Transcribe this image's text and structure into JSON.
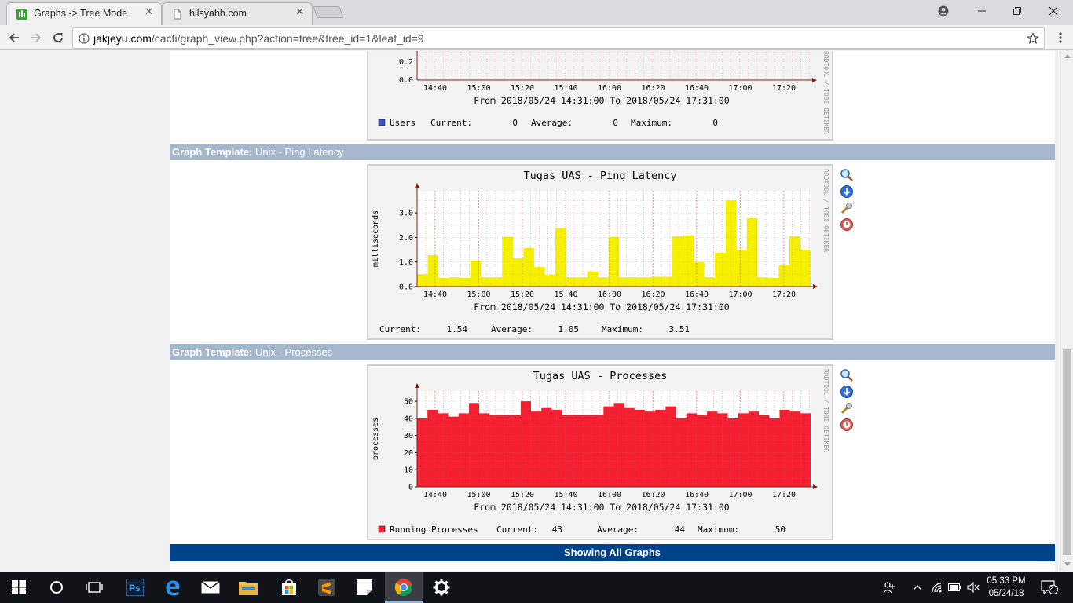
{
  "browser": {
    "tabs": [
      {
        "title": "Graphs -> Tree Mode",
        "active": true
      },
      {
        "title": "hilsyahh.com",
        "active": false
      }
    ],
    "url": {
      "host": "jakjeyu.com",
      "path": "/cacti/graph_view.php?action=tree&tree_id=1&leaf_id=9"
    }
  },
  "page": {
    "graph_users": {
      "y_ticks": [
        "0.2",
        "0.0"
      ],
      "x_ticks": [
        "14:40",
        "15:00",
        "15:20",
        "15:40",
        "16:00",
        "16:20",
        "16:40",
        "17:00",
        "17:20"
      ],
      "range_text": "From 2018/05/24 14:31:00 To 2018/05/24 17:31:00",
      "legend": {
        "series": "Users",
        "current_label": "Current:",
        "current": "0",
        "average_label": "Average:",
        "average": "0",
        "maximum_label": "Maximum:",
        "maximum": "0",
        "color": "#3a57c5"
      }
    },
    "templates": [
      {
        "label": "Graph Template:",
        "name": "Unix - Ping Latency"
      },
      {
        "label": "Graph Template:",
        "name": "Unix - Processes"
      }
    ],
    "watermark": "RRDTOOL / TOBI OETIKER",
    "showing_all": "Showing All Graphs"
  },
  "chart_data": [
    {
      "type": "area",
      "title": "Tugas UAS - Ping Latency",
      "ylabel": "milliseconds",
      "xlabel": "",
      "ylim": [
        0,
        3.9
      ],
      "y_ticks": [
        "0.0",
        "1.0",
        "2.0",
        "3.0"
      ],
      "x_ticks": [
        "14:40",
        "15:00",
        "15:20",
        "15:40",
        "16:00",
        "16:20",
        "16:40",
        "17:00",
        "17:20"
      ],
      "range_text": "From 2018/05/24 14:31:00 To 2018/05/24 17:31:00",
      "color": "#f5ef00",
      "values": [
        0.5,
        1.28,
        0.35,
        0.38,
        0.36,
        1.05,
        0.38,
        0.38,
        2.02,
        1.15,
        1.57,
        0.8,
        0.48,
        2.38,
        0.38,
        0.38,
        0.62,
        0.38,
        2.02,
        0.38,
        0.38,
        0.38,
        0.4,
        0.4,
        2.05,
        2.08,
        1.0,
        0.38,
        1.38,
        3.51,
        1.5,
        2.78,
        0.38,
        0.35,
        0.88,
        2.05,
        1.5
      ],
      "legend": {
        "current_label": "Current:",
        "current": "1.54",
        "average_label": "Average:",
        "average": "1.05",
        "maximum_label": "Maximum:",
        "maximum": "3.51"
      }
    },
    {
      "type": "area",
      "title": "Tugas UAS - Processes",
      "ylabel": "processes",
      "xlabel": "",
      "ylim": [
        0,
        56
      ],
      "y_ticks": [
        "0",
        "10",
        "20",
        "30",
        "40",
        "50"
      ],
      "x_ticks": [
        "14:40",
        "15:00",
        "15:20",
        "15:40",
        "16:00",
        "16:20",
        "16:40",
        "17:00",
        "17:20"
      ],
      "range_text": "From 2018/05/24 14:31:00 To 2018/05/24 17:31:00",
      "color": "#f42032",
      "values": [
        40,
        45,
        43,
        41,
        43,
        49,
        43,
        42,
        42,
        42,
        50,
        44,
        46,
        45,
        42,
        42,
        42,
        42,
        47,
        49,
        46,
        45,
        44,
        45,
        47,
        40,
        43,
        42,
        44,
        43,
        40,
        43,
        44,
        42,
        40,
        45,
        44,
        43
      ],
      "series_name": "Running Processes",
      "legend": {
        "current_label": "Current:",
        "current": "43",
        "average_label": "Average:",
        "average": "44",
        "maximum_label": "Maximum:",
        "maximum": "50"
      }
    }
  ],
  "taskbar": {
    "time": "05:33 PM",
    "date": "05/24/18",
    "notification_count": "2"
  }
}
